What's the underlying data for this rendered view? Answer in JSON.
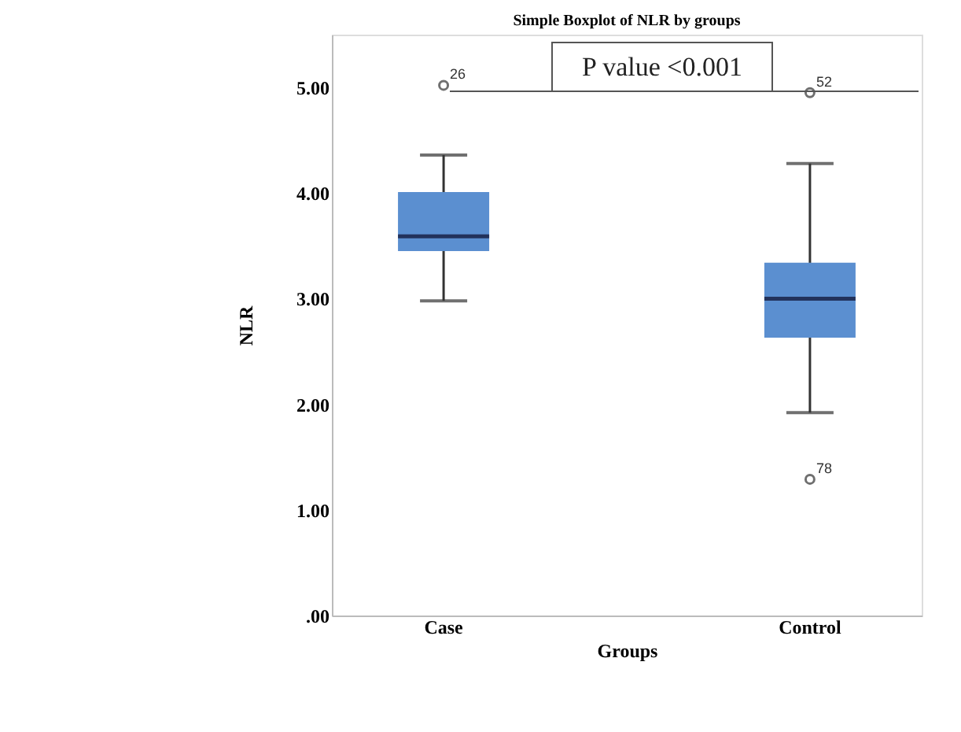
{
  "chart_data": {
    "type": "box",
    "title": "Simple Boxplot of NLR by groups",
    "xlabel": "Groups",
    "ylabel": "NLR",
    "categories": [
      "Case",
      "Control"
    ],
    "boxes": [
      {
        "low": 2.98,
        "q1": 3.45,
        "median": 3.59,
        "q3": 4.01,
        "high": 4.36,
        "outliers": [
          5.02
        ]
      },
      {
        "low": 1.92,
        "q1": 2.63,
        "median": 3.0,
        "q3": 3.34,
        "high": 4.28,
        "outliers": [
          4.95,
          1.29
        ]
      }
    ],
    "color": "#5b8fd0",
    "ylim": [
      0,
      5.5
    ],
    "yticks": [
      {
        "value": 0,
        "label": ".00"
      },
      {
        "value": 1,
        "label": "1.00"
      },
      {
        "value": 2,
        "label": "2.00"
      },
      {
        "value": 3,
        "label": "3.00"
      },
      {
        "value": 4,
        "label": "4.00"
      },
      {
        "value": 5,
        "label": "5.00"
      }
    ],
    "grid": false,
    "annotations": [
      "26",
      "52",
      "78",
      "P value <0.001"
    ]
  }
}
